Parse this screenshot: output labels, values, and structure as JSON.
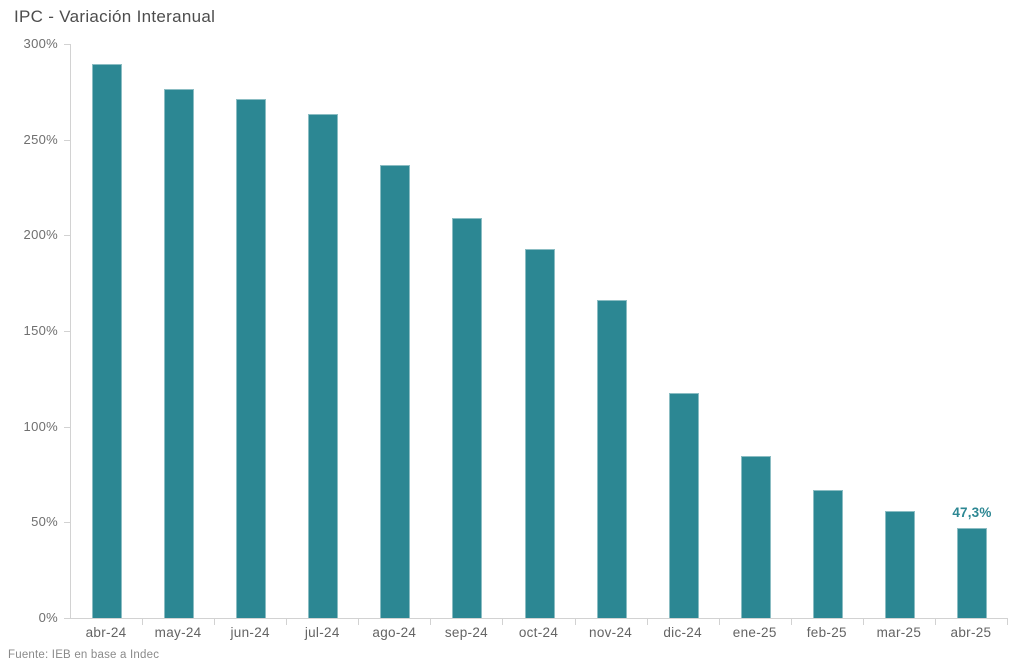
{
  "title": "IPC - Variación Interanual",
  "source": "Fuente: IEB en base a Indec",
  "colors": {
    "bar": "#2c8793",
    "value_label": "#2c8793",
    "axis_line": "#d2d2d2"
  },
  "chart_data": {
    "type": "bar",
    "title": "IPC - Variación Interanual",
    "categories": [
      "abr-24",
      "may-24",
      "jun-24",
      "jul-24",
      "ago-24",
      "sep-24",
      "oct-24",
      "nov-24",
      "dic-24",
      "ene-25",
      "feb-25",
      "mar-25",
      "abr-25"
    ],
    "values": [
      289.4,
      276.4,
      271.5,
      263.4,
      236.7,
      209.0,
      193.0,
      166.0,
      117.8,
      84.5,
      66.9,
      55.9,
      47.3
    ],
    "point_labels": {
      "abr-25": "47,3%"
    },
    "xlabel": "",
    "ylabel": "",
    "ylim": [
      0,
      300
    ],
    "yticks": [
      {
        "value": 0,
        "label": "0%"
      },
      {
        "value": 50,
        "label": "50%"
      },
      {
        "value": 100,
        "label": "100%"
      },
      {
        "value": 150,
        "label": "150%"
      },
      {
        "value": 200,
        "label": "200%"
      },
      {
        "value": 250,
        "label": "250%"
      },
      {
        "value": 300,
        "label": "300%"
      }
    ],
    "grid": false,
    "legend": "none",
    "bar_color": "#2c8793",
    "source": "Fuente: IEB en base a Indec"
  }
}
